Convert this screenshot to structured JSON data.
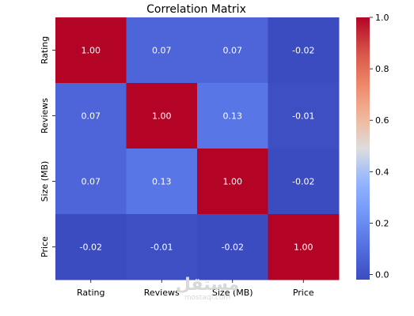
{
  "chart_data": {
    "type": "heatmap",
    "title": "Correlation Matrix",
    "x_labels": [
      "Rating",
      "Reviews",
      "Size (MB)",
      "Price"
    ],
    "y_labels": [
      "Rating",
      "Reviews",
      "Size (MB)",
      "Price"
    ],
    "values": [
      [
        1.0,
        0.07,
        0.07,
        -0.02
      ],
      [
        0.07,
        1.0,
        0.13,
        -0.01
      ],
      [
        0.07,
        0.13,
        1.0,
        -0.02
      ],
      [
        -0.02,
        -0.01,
        -0.02,
        1.0
      ]
    ],
    "colormap": "coolwarm",
    "colorbar": {
      "range": [
        -0.02,
        1.0
      ],
      "ticks": [
        0.0,
        0.2,
        0.4,
        0.6,
        0.8,
        1.0
      ],
      "tick_labels": [
        "0.0",
        "0.2",
        "0.4",
        "0.6",
        "0.8",
        "1.0"
      ]
    },
    "annotation_format": "0.00"
  },
  "watermark": {
    "text": "مستقل",
    "subtext": "mostaql.com"
  }
}
